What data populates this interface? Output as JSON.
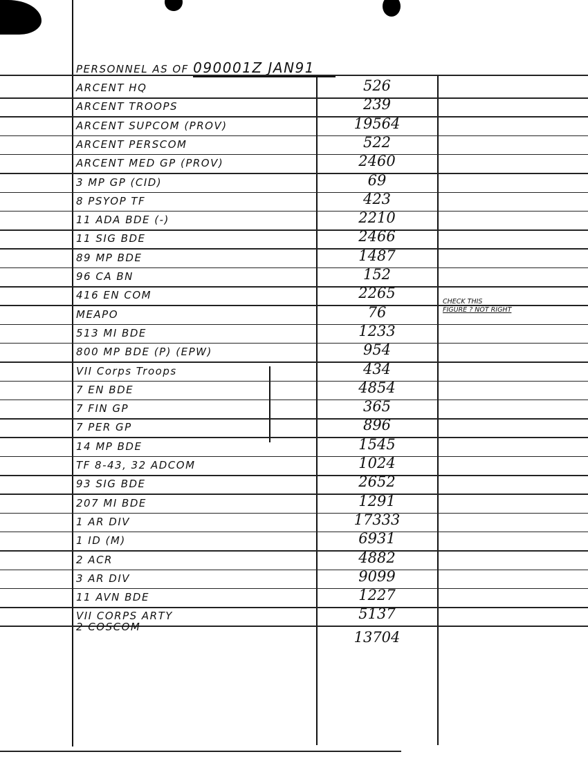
{
  "header": {
    "prefix": "PERSONNEL AS OF",
    "dtg": "090001Z JAN91"
  },
  "rows": [
    {
      "unit": "ARCENT HQ",
      "count": "526"
    },
    {
      "unit": "ARCENT TROOPS",
      "count": "239"
    },
    {
      "unit": "ARCENT SUPCOM (PROV)",
      "count": "19564"
    },
    {
      "unit": "ARCENT PERSCOM",
      "count": "522"
    },
    {
      "unit": "ARCENT MED GP (PROV)",
      "count": "2460"
    },
    {
      "unit": "3 MP GP (CID)",
      "count": "69"
    },
    {
      "unit": "8 PSYOP TF",
      "count": "423"
    },
    {
      "unit": "11 ADA BDE (-)",
      "count": "2210"
    },
    {
      "unit": "11 SIG BDE",
      "count": "2466"
    },
    {
      "unit": "89 MP BDE",
      "count": "1487"
    },
    {
      "unit": "96 CA BN",
      "count": "152"
    },
    {
      "unit": "416 EN COM",
      "count": "2265"
    },
    {
      "unit": "MEAPO",
      "count": "76"
    },
    {
      "unit": "513 MI BDE",
      "count": "1233"
    },
    {
      "unit": "800 MP BDE (P) (EPW)",
      "count": "954"
    },
    {
      "unit": "VII Corps Troops",
      "count": "434"
    },
    {
      "unit": "7 EN BDE",
      "count": "4854"
    },
    {
      "unit": "7 FIN GP",
      "count": "365"
    },
    {
      "unit": "7 PER GP",
      "count": "896"
    },
    {
      "unit": "14 MP BDE",
      "count": "1545"
    },
    {
      "unit": "TF 8-43, 32 ADCOM",
      "count": "1024"
    },
    {
      "unit": "93 SIG BDE",
      "count": "2652"
    },
    {
      "unit": "207 MI BDE",
      "count": "1291"
    },
    {
      "unit": "1 AR DIV",
      "count": "17333"
    },
    {
      "unit": "1 ID (M)",
      "count": "6931"
    },
    {
      "unit": "2 ACR",
      "count": "4882"
    },
    {
      "unit": "3 AR DIV",
      "count": "9099"
    },
    {
      "unit": "11 AVN BDE",
      "count": "1227"
    },
    {
      "unit": "VII CORPS ARTY",
      "count": "5137"
    },
    {
      "unit": "2 COSCOM",
      "count": "13704"
    }
  ],
  "note": {
    "line1": "CHECK THIS",
    "line2": "FIGURE ? NOT RIGHT"
  }
}
